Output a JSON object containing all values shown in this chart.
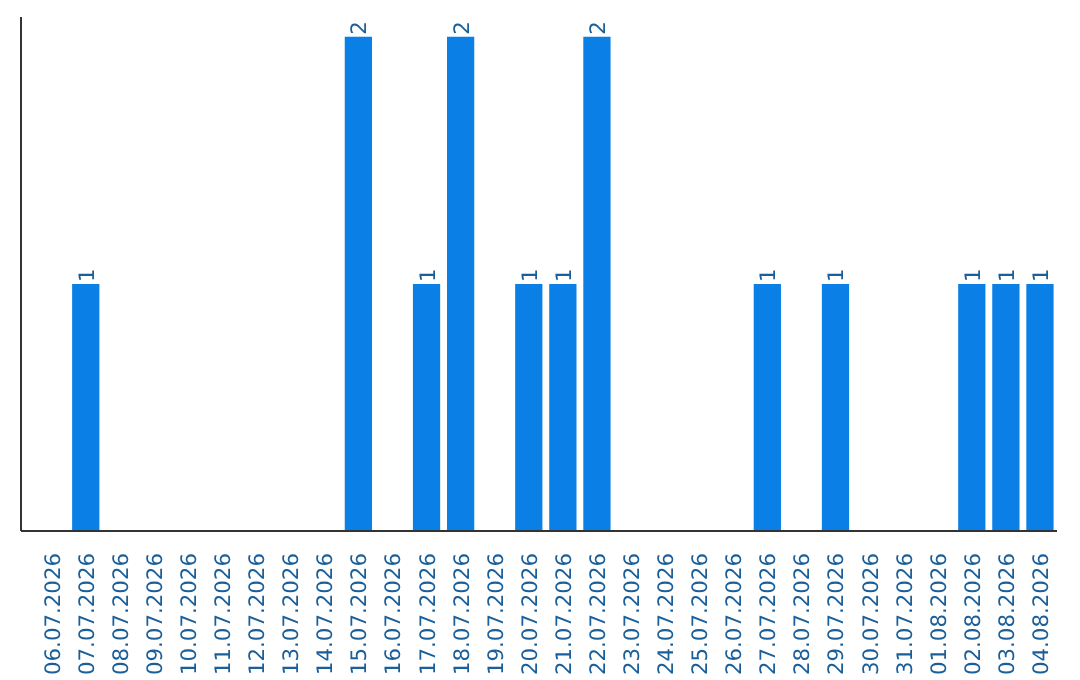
{
  "chart_data": {
    "type": "bar",
    "categories": [
      "06.07.2026",
      "07.07.2026",
      "08.07.2026",
      "09.07.2026",
      "10.07.2026",
      "11.07.2026",
      "12.07.2026",
      "13.07.2026",
      "14.07.2026",
      "15.07.2026",
      "16.07.2026",
      "17.07.2026",
      "18.07.2026",
      "19.07.2026",
      "20.07.2026",
      "21.07.2026",
      "22.07.2026",
      "23.07.2026",
      "24.07.2026",
      "25.07.2026",
      "26.07.2026",
      "27.07.2026",
      "28.07.2026",
      "29.07.2026",
      "30.07.2026",
      "31.07.2026",
      "01.08.2026",
      "02.08.2026",
      "03.08.2026",
      "04.08.2026"
    ],
    "values": [
      0,
      1,
      0,
      0,
      0,
      0,
      0,
      0,
      0,
      2,
      0,
      1,
      2,
      0,
      1,
      1,
      2,
      0,
      0,
      0,
      0,
      1,
      0,
      1,
      0,
      0,
      0,
      1,
      1,
      1
    ],
    "value_labels": [
      null,
      "1",
      null,
      null,
      null,
      null,
      null,
      null,
      null,
      "2",
      null,
      "1",
      "2",
      null,
      "1",
      "1",
      "2",
      null,
      null,
      null,
      null,
      "1",
      null,
      "1",
      null,
      null,
      null,
      "1",
      "1",
      "1"
    ],
    "color": "#0a7fe6",
    "ylim": [
      0,
      2.08
    ],
    "tick_labels": "x",
    "grid": false
  }
}
